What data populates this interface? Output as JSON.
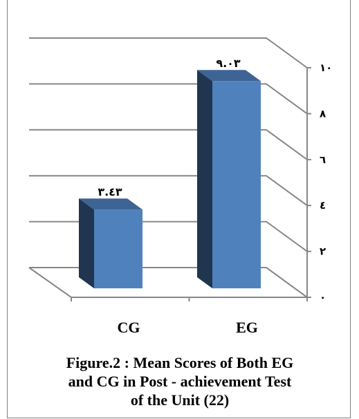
{
  "chart_data": {
    "type": "bar",
    "categories": [
      "CG",
      "EG"
    ],
    "values": [
      3.43,
      9.03
    ],
    "data_labels": [
      "٣.٤٣",
      "٩.٠٣"
    ],
    "ylim": [
      0,
      10
    ],
    "yticks": [
      {
        "value": 0,
        "label": "٠"
      },
      {
        "value": 2,
        "label": "٢"
      },
      {
        "value": 4,
        "label": "٤"
      },
      {
        "value": 6,
        "label": "٦"
      },
      {
        "value": 8,
        "label": "٨"
      },
      {
        "value": 10,
        "label": "١٠"
      }
    ],
    "yaxis_position": "right",
    "grid": true,
    "style": "3d",
    "colors": {
      "front": "#4f81bd",
      "side": "#1f3550",
      "top": "#3d6494",
      "grid": "#868686"
    }
  },
  "caption": {
    "line1": "Figure.2 : Mean Scores of Both EG",
    "line2": "and CG in Post - achievement Test",
    "line3": "of the Unit (22)"
  }
}
